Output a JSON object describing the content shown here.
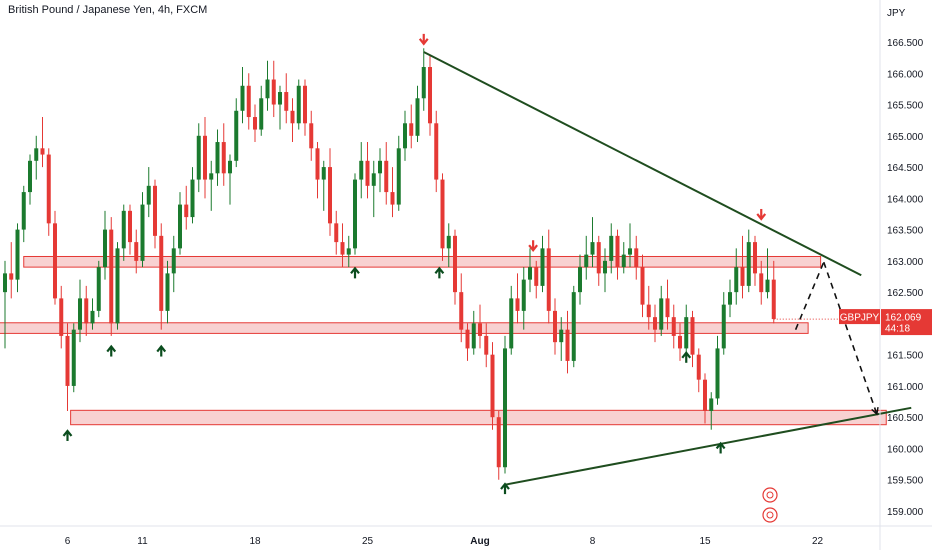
{
  "chart_title": "British Pound / Japanese Yen, 4h, FXCM",
  "currency_label": "JPY",
  "chart_data": {
    "type": "candlestick",
    "title": "British Pound / Japanese Yen, 4h, FXCM",
    "ylabel": "JPY",
    "ylim": [
      158.9,
      166.8
    ],
    "y_ticks": [
      159.0,
      159.5,
      160.0,
      160.5,
      161.0,
      161.5,
      162.0,
      162.5,
      163.0,
      163.5,
      164.0,
      164.5,
      165.0,
      165.5,
      166.0,
      166.5
    ],
    "y_tick_labels": [
      "159.000",
      "159.500",
      "160.000",
      "160.500",
      "161.000",
      "161.500",
      "162.000",
      "162.500",
      "163.000",
      "163.500",
      "164.000",
      "164.500",
      "165.000",
      "165.500",
      "166.000",
      "166.500"
    ],
    "x_ticks": [
      {
        "label": "6",
        "index": 10
      },
      {
        "label": "11",
        "index": 22
      },
      {
        "label": "18",
        "index": 40
      },
      {
        "label": "25",
        "index": 58
      },
      {
        "label": "Aug",
        "index": 76
      },
      {
        "label": "8",
        "index": 94
      },
      {
        "label": "15",
        "index": 112
      },
      {
        "label": "22",
        "index": 130
      }
    ],
    "grid": false,
    "up_color": "#1b7a2e",
    "down_color": "#e53935",
    "last_price": {
      "symbol": "GBPJPY",
      "value": "162.069",
      "countdown": "44:18",
      "price": 162.069,
      "color": "#e53935"
    },
    "zones": [
      {
        "y_low": 162.9,
        "y_high": 163.07,
        "x_start": 3,
        "x_end": 130.5
      },
      {
        "y_low": 161.84,
        "y_high": 162.01,
        "x_start": -1,
        "x_end": 128.5
      },
      {
        "y_low": 160.38,
        "y_high": 160.61,
        "x_start": 10.5,
        "x_end": 141
      }
    ],
    "trendlines": [
      {
        "name": "",
        "x1": 67,
        "y1": 166.34,
        "x2": 137,
        "y2": 162.77,
        "style": "solid",
        "color": "#1f4d1f"
      },
      {
        "name": "",
        "x1": 80,
        "y1": 159.42,
        "x2": 145,
        "y2": 160.65,
        "style": "solid",
        "color": "#1f4d1f"
      }
    ],
    "projection": [
      {
        "x": 126.5,
        "y": 161.9
      },
      {
        "x": 131.0,
        "y": 162.98
      },
      {
        "x": 139.5,
        "y": 160.55
      }
    ],
    "markers": [
      {
        "type": "up",
        "index": 10,
        "y": 160.2
      },
      {
        "type": "up",
        "index": 17,
        "y": 161.55
      },
      {
        "type": "up",
        "index": 25,
        "y": 161.55
      },
      {
        "type": "up",
        "index": 56,
        "y": 162.8
      },
      {
        "type": "up",
        "index": 69.5,
        "y": 162.8
      },
      {
        "type": "up",
        "index": 80,
        "y": 159.35
      },
      {
        "type": "up",
        "index": 109,
        "y": 161.45
      },
      {
        "type": "up",
        "index": 114.5,
        "y": 160.0
      },
      {
        "type": "down",
        "index": 67,
        "y": 166.55
      },
      {
        "type": "down",
        "index": 84.5,
        "y": 163.25
      },
      {
        "type": "down",
        "index": 121,
        "y": 163.75
      }
    ],
    "candles": [
      [
        162.5,
        163.0,
        161.6,
        162.8
      ],
      [
        162.8,
        163.3,
        162.4,
        162.7
      ],
      [
        162.7,
        163.6,
        162.5,
        163.5
      ],
      [
        163.5,
        164.2,
        163.3,
        164.1
      ],
      [
        164.1,
        164.7,
        163.9,
        164.6
      ],
      [
        164.6,
        165.0,
        164.3,
        164.8
      ],
      [
        164.8,
        165.3,
        164.5,
        164.7
      ],
      [
        164.7,
        164.8,
        163.4,
        163.6
      ],
      [
        163.6,
        163.8,
        162.3,
        162.4
      ],
      [
        162.4,
        162.6,
        161.6,
        161.8
      ],
      [
        161.8,
        162.0,
        160.6,
        161.0
      ],
      [
        161.0,
        162.0,
        160.9,
        161.9
      ],
      [
        161.9,
        162.7,
        161.7,
        162.4
      ],
      [
        162.4,
        162.6,
        161.8,
        162.0
      ],
      [
        162.0,
        162.4,
        161.9,
        162.2
      ],
      [
        162.2,
        163.0,
        162.1,
        162.9
      ],
      [
        162.9,
        163.8,
        162.7,
        163.5
      ],
      [
        163.5,
        163.7,
        161.8,
        162.0
      ],
      [
        162.0,
        163.3,
        161.9,
        163.2
      ],
      [
        163.2,
        163.9,
        163.0,
        163.8
      ],
      [
        163.8,
        163.9,
        163.1,
        163.3
      ],
      [
        163.3,
        163.5,
        162.8,
        163.0
      ],
      [
        163.0,
        164.1,
        162.9,
        163.9
      ],
      [
        163.9,
        164.5,
        163.7,
        164.2
      ],
      [
        164.2,
        164.3,
        163.2,
        163.4
      ],
      [
        163.4,
        163.6,
        161.9,
        162.2
      ],
      [
        162.2,
        163.0,
        162.0,
        162.8
      ],
      [
        162.8,
        163.4,
        162.5,
        163.2
      ],
      [
        163.2,
        164.1,
        163.1,
        163.9
      ],
      [
        163.9,
        164.2,
        163.5,
        163.7
      ],
      [
        163.7,
        164.5,
        163.6,
        164.3
      ],
      [
        164.3,
        165.2,
        164.1,
        165.0
      ],
      [
        165.0,
        165.3,
        164.0,
        164.3
      ],
      [
        164.3,
        164.6,
        163.8,
        164.4
      ],
      [
        164.4,
        165.1,
        164.2,
        164.9
      ],
      [
        164.9,
        165.2,
        164.2,
        164.4
      ],
      [
        164.4,
        164.7,
        163.9,
        164.6
      ],
      [
        164.6,
        165.6,
        164.5,
        165.4
      ],
      [
        165.4,
        166.1,
        165.2,
        165.8
      ],
      [
        165.8,
        166.0,
        165.1,
        165.3
      ],
      [
        165.3,
        165.5,
        164.9,
        165.1
      ],
      [
        165.1,
        165.8,
        165.0,
        165.6
      ],
      [
        165.6,
        166.2,
        165.4,
        165.9
      ],
      [
        165.9,
        166.2,
        165.3,
        165.5
      ],
      [
        165.5,
        165.8,
        165.1,
        165.7
      ],
      [
        165.7,
        166.0,
        165.2,
        165.4
      ],
      [
        165.4,
        165.6,
        164.9,
        165.2
      ],
      [
        165.2,
        165.9,
        165.1,
        165.8
      ],
      [
        165.8,
        165.9,
        165.0,
        165.2
      ],
      [
        165.2,
        165.4,
        164.6,
        164.8
      ],
      [
        164.8,
        164.9,
        164.0,
        164.3
      ],
      [
        164.3,
        164.6,
        163.8,
        164.5
      ],
      [
        164.5,
        164.8,
        163.4,
        163.6
      ],
      [
        163.6,
        163.8,
        163.1,
        163.3
      ],
      [
        163.3,
        163.6,
        162.9,
        163.1
      ],
      [
        163.1,
        163.4,
        162.9,
        163.2
      ],
      [
        163.2,
        164.4,
        163.1,
        164.3
      ],
      [
        164.3,
        164.9,
        164.0,
        164.6
      ],
      [
        164.6,
        164.9,
        164.0,
        164.2
      ],
      [
        164.2,
        164.6,
        163.7,
        164.4
      ],
      [
        164.4,
        164.8,
        164.1,
        164.6
      ],
      [
        164.6,
        164.9,
        163.9,
        164.1
      ],
      [
        164.1,
        164.5,
        163.7,
        163.9
      ],
      [
        163.9,
        165.0,
        163.8,
        164.8
      ],
      [
        164.8,
        165.4,
        164.6,
        165.2
      ],
      [
        165.2,
        165.5,
        164.8,
        165.0
      ],
      [
        165.0,
        165.8,
        164.9,
        165.6
      ],
      [
        165.6,
        166.4,
        165.4,
        166.1
      ],
      [
        166.1,
        166.3,
        165.0,
        165.2
      ],
      [
        165.2,
        165.4,
        164.1,
        164.3
      ],
      [
        164.3,
        164.4,
        163.0,
        163.2
      ],
      [
        163.2,
        163.6,
        162.9,
        163.4
      ],
      [
        163.4,
        163.5,
        162.3,
        162.5
      ],
      [
        162.5,
        162.8,
        161.7,
        161.9
      ],
      [
        161.9,
        162.0,
        161.4,
        161.6
      ],
      [
        161.6,
        162.2,
        161.5,
        162.0
      ],
      [
        162.0,
        162.3,
        161.6,
        161.8
      ],
      [
        161.8,
        162.0,
        161.3,
        161.5
      ],
      [
        161.5,
        161.7,
        160.3,
        160.5
      ],
      [
        160.5,
        160.6,
        159.5,
        159.7
      ],
      [
        159.7,
        161.8,
        159.6,
        161.6
      ],
      [
        161.6,
        162.6,
        161.5,
        162.4
      ],
      [
        162.4,
        162.8,
        162.0,
        162.2
      ],
      [
        162.2,
        162.9,
        161.9,
        162.7
      ],
      [
        162.7,
        163.2,
        162.5,
        162.9
      ],
      [
        162.9,
        163.0,
        162.4,
        162.6
      ],
      [
        162.6,
        163.4,
        162.5,
        163.2
      ],
      [
        163.2,
        163.5,
        162.0,
        162.2
      ],
      [
        162.2,
        162.4,
        161.5,
        161.7
      ],
      [
        161.7,
        162.1,
        161.4,
        161.9
      ],
      [
        161.9,
        162.2,
        161.2,
        161.4
      ],
      [
        161.4,
        162.6,
        161.3,
        162.5
      ],
      [
        162.5,
        163.1,
        162.3,
        162.9
      ],
      [
        162.9,
        163.4,
        162.7,
        163.1
      ],
      [
        163.1,
        163.7,
        162.9,
        163.3
      ],
      [
        163.3,
        163.4,
        162.6,
        162.8
      ],
      [
        162.8,
        163.2,
        162.5,
        163.0
      ],
      [
        163.0,
        163.6,
        162.8,
        163.4
      ],
      [
        163.4,
        163.5,
        162.7,
        162.9
      ],
      [
        162.9,
        163.3,
        162.8,
        163.1
      ],
      [
        163.1,
        163.6,
        162.9,
        163.2
      ],
      [
        163.2,
        163.4,
        162.7,
        162.9
      ],
      [
        162.9,
        163.1,
        162.1,
        162.3
      ],
      [
        162.3,
        162.6,
        161.9,
        162.1
      ],
      [
        162.1,
        162.3,
        161.7,
        161.9
      ],
      [
        161.9,
        162.6,
        161.8,
        162.4
      ],
      [
        162.4,
        162.7,
        161.9,
        162.1
      ],
      [
        162.1,
        162.3,
        161.6,
        161.8
      ],
      [
        161.8,
        162.0,
        161.4,
        161.6
      ],
      [
        161.6,
        162.3,
        161.5,
        162.1
      ],
      [
        162.1,
        162.2,
        161.3,
        161.5
      ],
      [
        161.5,
        161.6,
        160.9,
        161.1
      ],
      [
        161.1,
        161.2,
        160.4,
        160.6
      ],
      [
        160.6,
        160.9,
        160.3,
        160.8
      ],
      [
        160.8,
        161.8,
        160.7,
        161.6
      ],
      [
        161.6,
        162.5,
        161.5,
        162.3
      ],
      [
        162.3,
        162.7,
        162.1,
        162.5
      ],
      [
        162.5,
        163.2,
        162.3,
        162.9
      ],
      [
        162.9,
        163.4,
        162.4,
        162.6
      ],
      [
        162.6,
        163.5,
        162.5,
        163.3
      ],
      [
        163.3,
        163.4,
        162.6,
        162.8
      ],
      [
        162.8,
        163.0,
        162.3,
        162.5
      ],
      [
        162.5,
        163.2,
        162.4,
        162.7
      ],
      [
        162.7,
        163.0,
        162.0,
        162.069
      ]
    ]
  }
}
